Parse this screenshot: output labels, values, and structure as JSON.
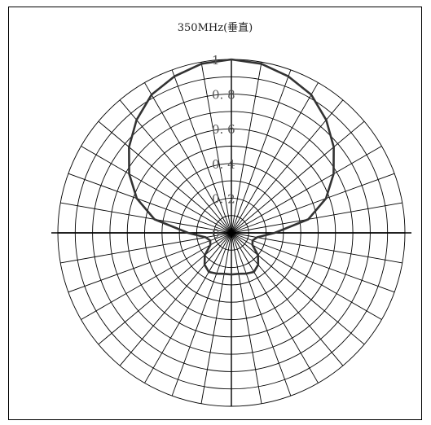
{
  "chart_data": {
    "type": "polar-line",
    "title": "350MHz(垂直)",
    "radial_ticks": [
      "0",
      "0.2",
      "0.4",
      "0.6",
      "0.8",
      "1"
    ],
    "radial_tick_display": [
      "0",
      "0. 2",
      "0. 4",
      "0. 6",
      "0. 8",
      "1"
    ],
    "rlim": [
      0,
      1
    ],
    "angular_step_deg": 10,
    "angle_reference": "0 deg at top, clockwise",
    "grid": true,
    "series": [
      {
        "angles_deg": [
          0,
          10,
          20,
          30,
          40,
          50,
          60,
          70,
          80,
          90,
          100,
          110,
          120,
          130,
          140,
          150,
          160,
          170,
          180,
          190,
          200,
          210,
          220,
          230,
          240,
          250,
          260,
          270,
          280,
          290,
          300,
          310,
          320,
          330,
          340,
          350,
          360
        ],
        "values": [
          1.0,
          0.99,
          0.96,
          0.92,
          0.85,
          0.77,
          0.68,
          0.58,
          0.45,
          0.25,
          0.15,
          0.13,
          0.14,
          0.2,
          0.24,
          0.26,
          0.25,
          0.24,
          0.24,
          0.24,
          0.25,
          0.26,
          0.24,
          0.2,
          0.14,
          0.13,
          0.15,
          0.25,
          0.45,
          0.58,
          0.68,
          0.77,
          0.85,
          0.92,
          0.96,
          0.99,
          1.0
        ]
      }
    ],
    "colors": {
      "grid": "#000000",
      "series": "#333333",
      "tick_text": "#555555"
    }
  }
}
